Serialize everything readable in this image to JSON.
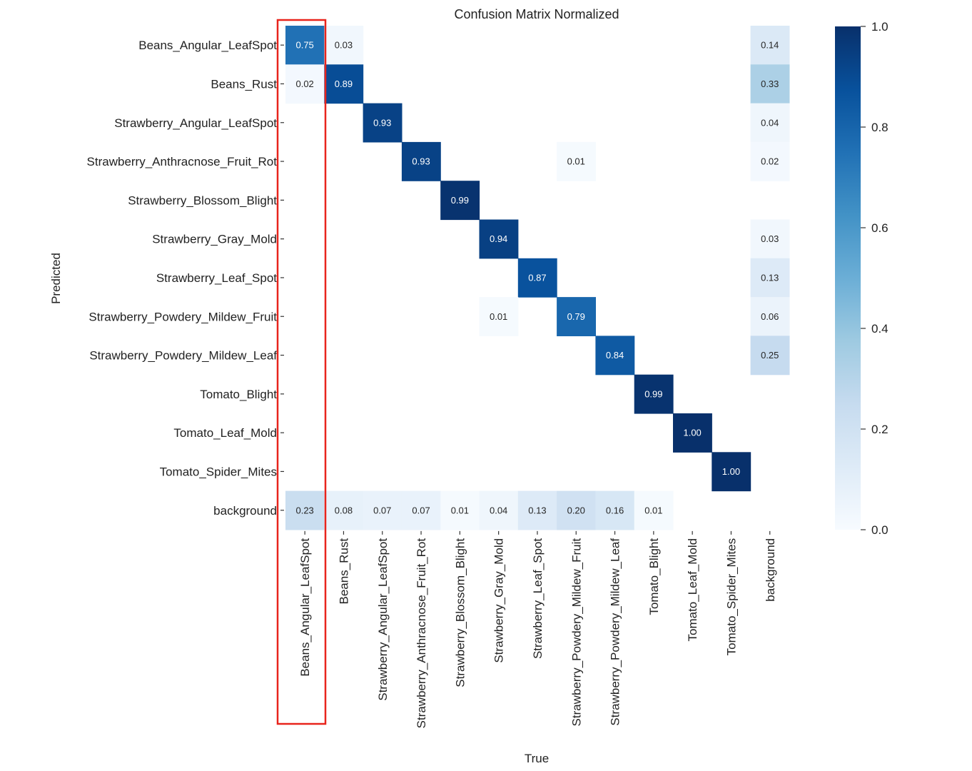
{
  "chart_data": {
    "type": "heatmap",
    "title": "Confusion Matrix Normalized",
    "xlabel": "True",
    "ylabel": "Predicted",
    "row_labels": [
      "Beans_Angular_LeafSpot",
      "Beans_Rust",
      "Strawberry_Angular_LeafSpot",
      "Strawberry_Anthracnose_Fruit_Rot",
      "Strawberry_Blossom_Blight",
      "Strawberry_Gray_Mold",
      "Strawberry_Leaf_Spot",
      "Strawberry_Powdery_Mildew_Fruit",
      "Strawberry_Powdery_Mildew_Leaf",
      "Tomato_Blight",
      "Tomato_Leaf_Mold",
      "Tomato_Spider_Mites",
      "background"
    ],
    "col_labels": [
      "Beans_Angular_LeafSpot",
      "Beans_Rust",
      "Strawberry_Angular_LeafSpot",
      "Strawberry_Anthracnose_Fruit_Rot",
      "Strawberry_Blossom_Blight",
      "Strawberry_Gray_Mold",
      "Strawberry_Leaf_Spot",
      "Strawberry_Powdery_Mildew_Fruit",
      "Strawberry_Powdery_Mildew_Leaf",
      "Tomato_Blight",
      "Tomato_Leaf_Mold",
      "Tomato_Spider_Mites",
      "background"
    ],
    "values": [
      [
        0.75,
        0.03,
        null,
        null,
        null,
        null,
        null,
        null,
        null,
        null,
        null,
        null,
        0.14
      ],
      [
        0.02,
        0.89,
        null,
        null,
        null,
        null,
        null,
        null,
        null,
        null,
        null,
        null,
        0.33
      ],
      [
        null,
        null,
        0.93,
        null,
        null,
        null,
        null,
        null,
        null,
        null,
        null,
        null,
        0.04
      ],
      [
        null,
        null,
        null,
        0.93,
        null,
        null,
        null,
        0.01,
        null,
        null,
        null,
        null,
        0.02
      ],
      [
        null,
        null,
        null,
        null,
        0.99,
        null,
        null,
        null,
        null,
        null,
        null,
        null,
        null
      ],
      [
        null,
        null,
        null,
        null,
        null,
        0.94,
        null,
        null,
        null,
        null,
        null,
        null,
        0.03
      ],
      [
        null,
        null,
        null,
        null,
        null,
        null,
        0.87,
        null,
        null,
        null,
        null,
        null,
        0.13
      ],
      [
        null,
        null,
        null,
        null,
        null,
        0.01,
        null,
        0.79,
        null,
        null,
        null,
        null,
        0.06
      ],
      [
        null,
        null,
        null,
        null,
        null,
        null,
        null,
        null,
        0.84,
        null,
        null,
        null,
        0.25
      ],
      [
        null,
        null,
        null,
        null,
        null,
        null,
        null,
        null,
        null,
        0.99,
        null,
        null,
        null
      ],
      [
        null,
        null,
        null,
        null,
        null,
        null,
        null,
        null,
        null,
        null,
        1.0,
        null,
        null
      ],
      [
        null,
        null,
        null,
        null,
        null,
        null,
        null,
        null,
        null,
        null,
        null,
        1.0,
        null
      ],
      [
        0.23,
        0.08,
        0.07,
        0.07,
        0.01,
        0.04,
        0.13,
        0.2,
        0.16,
        0.01,
        null,
        null,
        null
      ]
    ],
    "colormap": "Blues",
    "vmin": 0.0,
    "vmax": 1.0,
    "colorbar_ticks": [
      "0.0",
      "0.2",
      "0.4",
      "0.6",
      "0.8",
      "1.0"
    ],
    "value_format": "2 decimals",
    "highlight": {
      "column": "Beans_Angular_LeafSpot",
      "color": "#e8241c",
      "shape": "rectangle outline"
    },
    "legend": "colorbar right",
    "grid": false
  }
}
